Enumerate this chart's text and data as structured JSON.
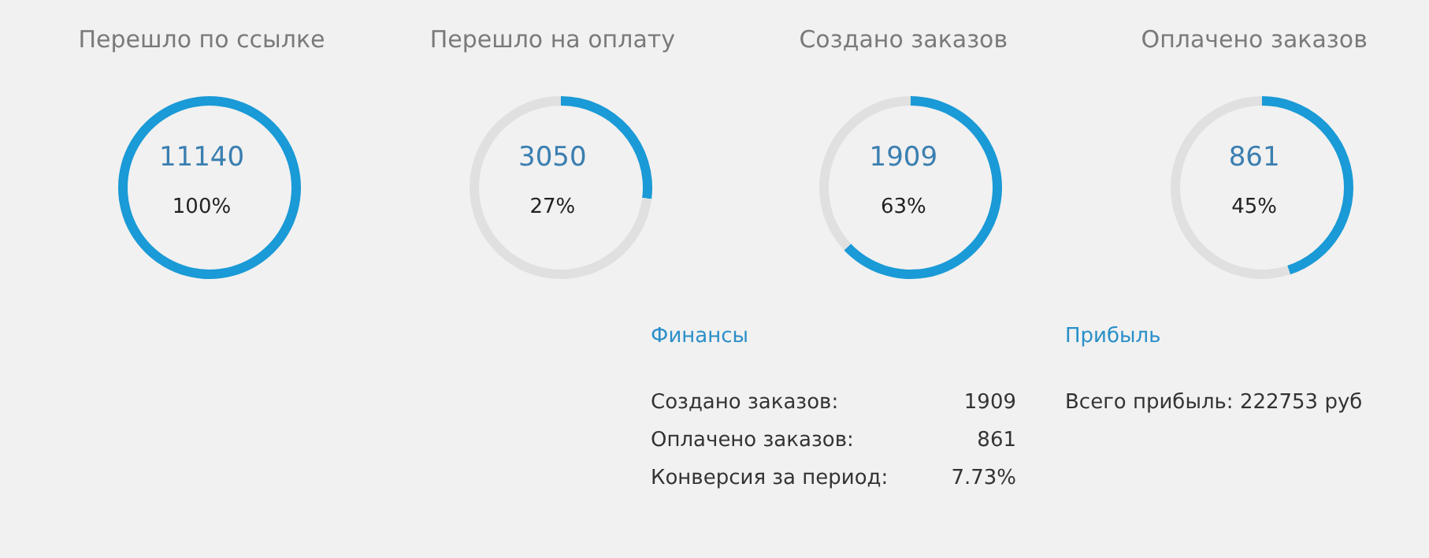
{
  "chart_data": [
    {
      "type": "pie",
      "title": "Перешло по ссылке",
      "categories": [
        null,
        null
      ],
      "values": [
        100,
        0
      ],
      "colors": [
        "#1a9ad6",
        "#e0e0e0"
      ],
      "annotations": [
        "11140",
        "100%"
      ]
    },
    {
      "type": "donut",
      "title": "Перешло на оплату",
      "categories": [
        null,
        null
      ],
      "values": [
        27,
        73
      ],
      "colors": [
        "#1a9ad6",
        "#e0e0e0"
      ],
      "annotations": [
        "3050",
        "27%"
      ]
    },
    {
      "type": "donut",
      "title": "Создано заказов",
      "categories": [
        null,
        null
      ],
      "values": [
        63,
        37
      ],
      "colors": [
        "#1a9ad6",
        "#e0e0e0"
      ],
      "annotations": [
        "1909",
        "63%"
      ]
    },
    {
      "type": "donut",
      "title": "Оплачено заказов",
      "categories": [
        null,
        null
      ],
      "values": [
        45,
        55
      ],
      "colors": [
        "#1a9ad6",
        "#e0e0e0"
      ],
      "annotations": [
        "861",
        "45%"
      ]
    },
    {
      "type": "other",
      "title": "Финансы",
      "annotations": [
        "Создано заказов:",
        "1909",
        "Оплачено заказов:",
        "861",
        "Конверсия за период:",
        "7.73%"
      ]
    },
    {
      "type": "other",
      "title": "Прибыль",
      "annotations": [
        "Всего прибыль: 222753 руб"
      ]
    }
  ]
}
